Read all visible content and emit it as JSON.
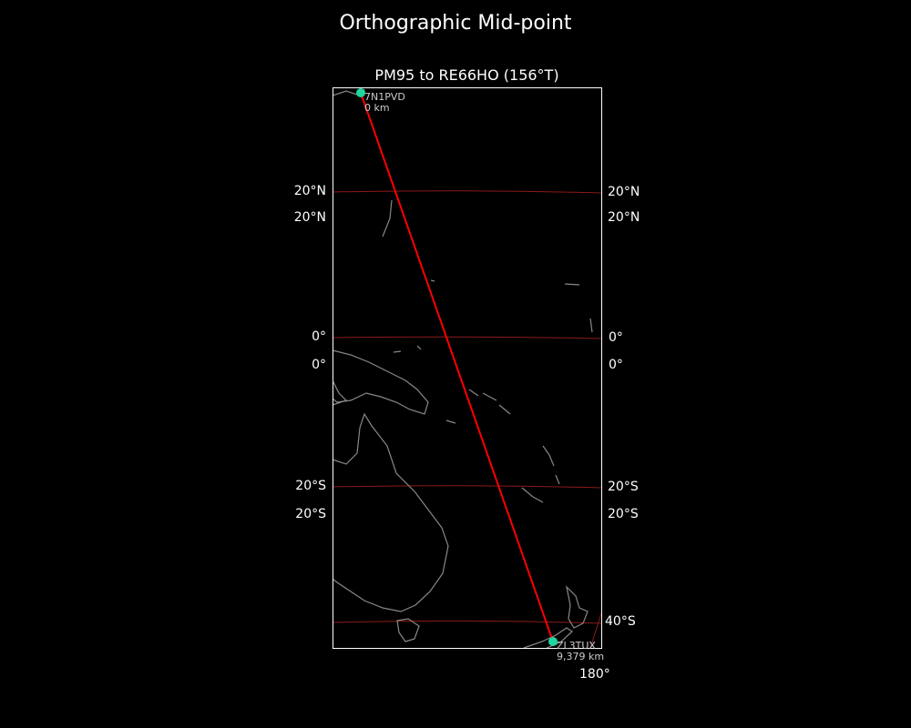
{
  "figure_title": "Orthographic Mid-point",
  "map_title": "PM95 to RE66HO (156°T)",
  "colors": {
    "background": "#000000",
    "path": "#ff0000",
    "graticule": "#8b1a1a",
    "coast": "#888888",
    "marker": "#1fd6a0",
    "frame": "#ffffff"
  },
  "lat_labels_left": [
    "20°N",
    "20°N",
    "0°",
    "0°",
    "20°S",
    "20°S"
  ],
  "lat_labels_right": [
    "20°N",
    "20°N",
    "0°",
    "0°",
    "20°S",
    "20°S",
    "40°S"
  ],
  "lon_labels": [
    "180°"
  ],
  "start": {
    "call": "7N1PVD",
    "dist": "0 km"
  },
  "end": {
    "call": "ZL3TUX",
    "dist": "9,379 km"
  }
}
